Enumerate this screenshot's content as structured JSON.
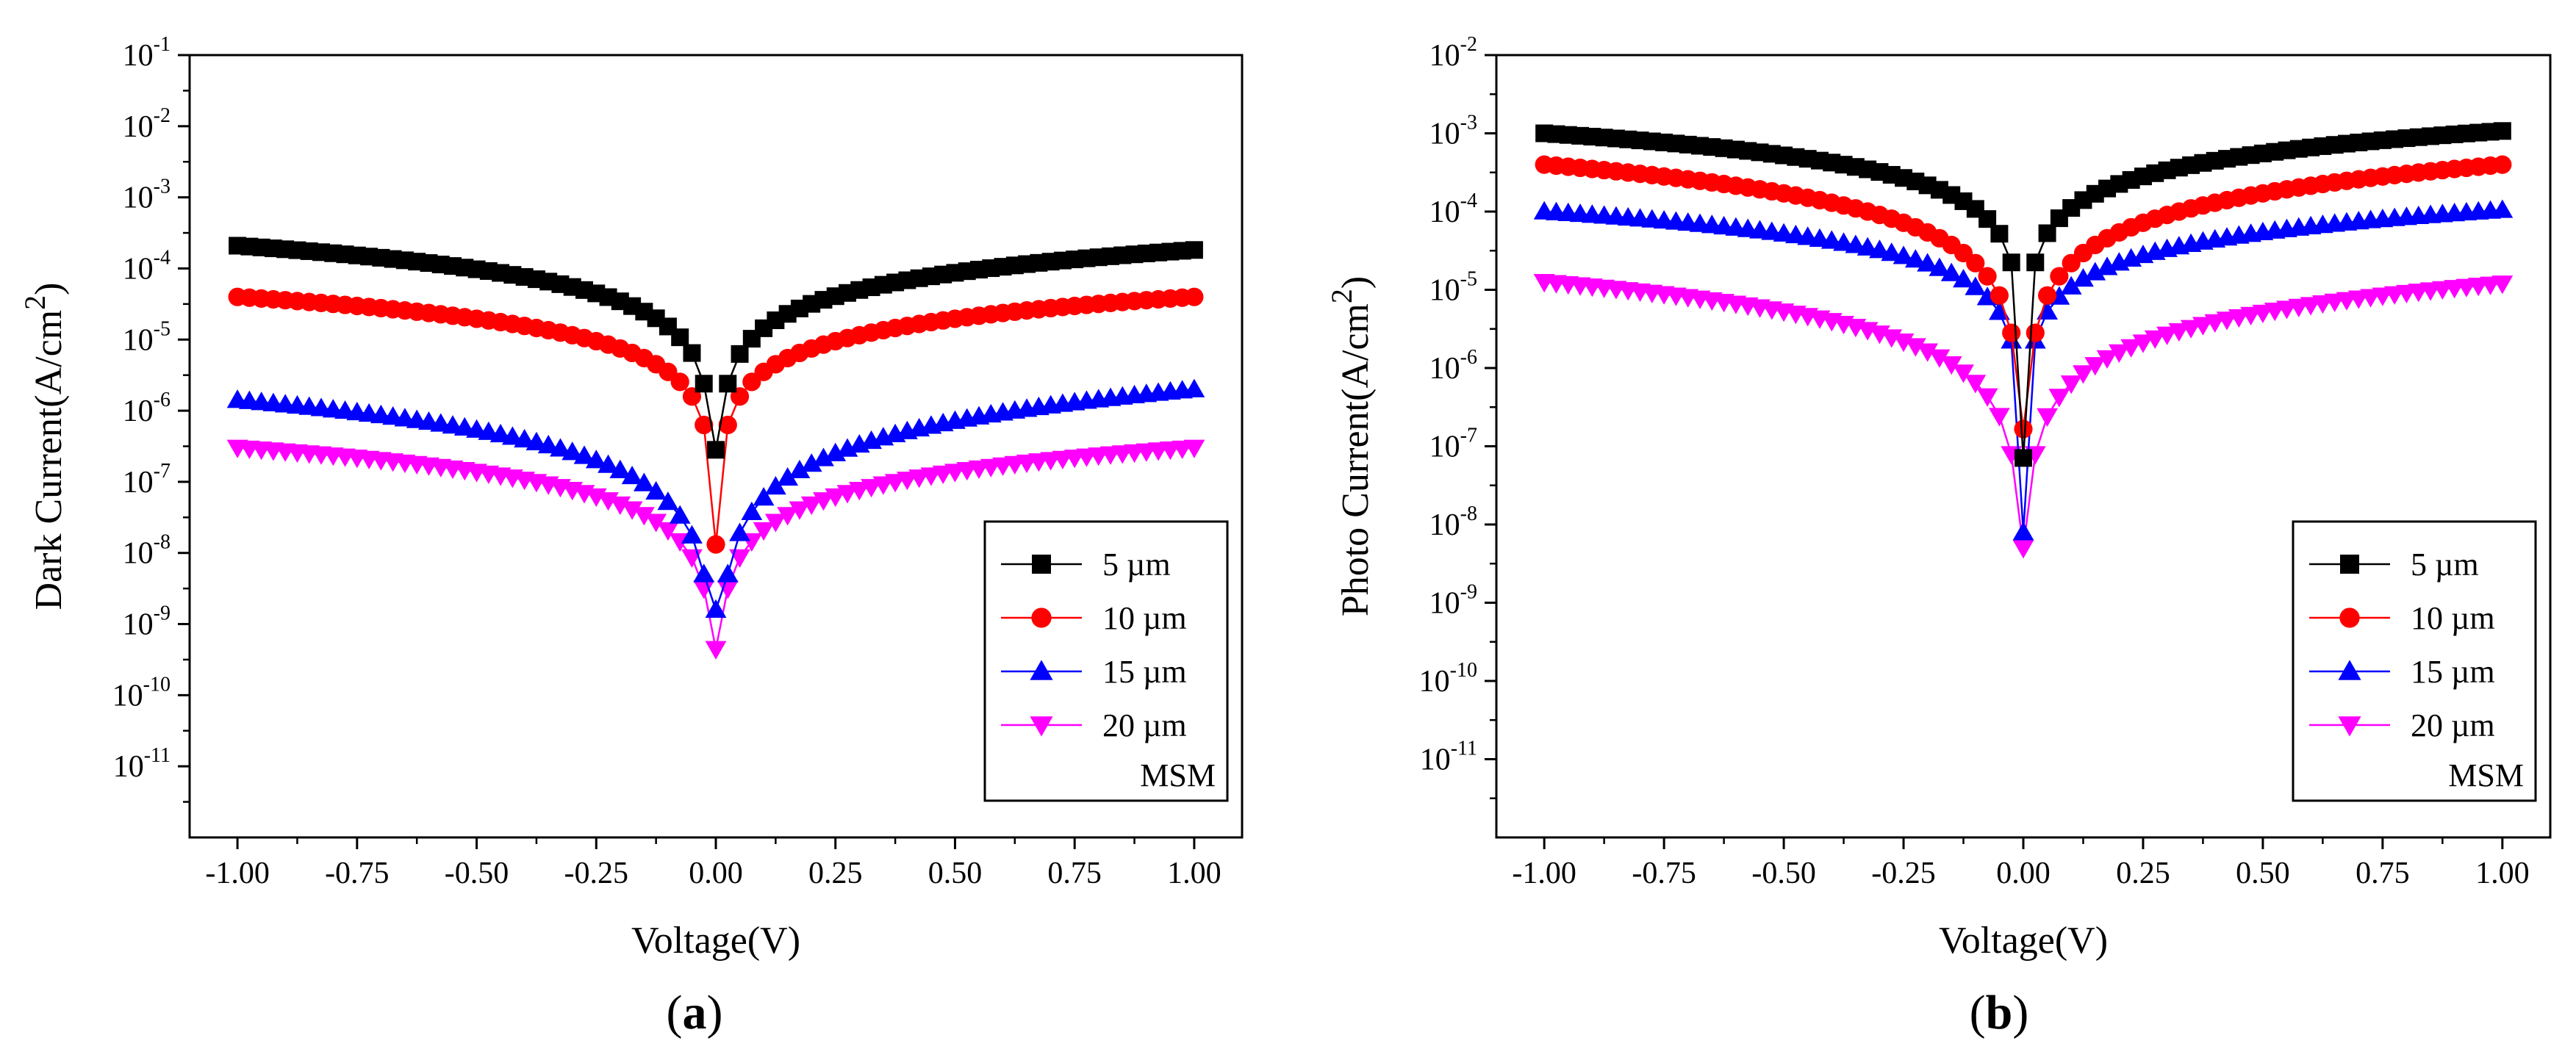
{
  "chart_data": [
    {
      "type": "scatter",
      "panel": "a",
      "caption": "a",
      "xlabel": "Voltage(V)",
      "ylabel_main": "Dark Current(A/cm",
      "ylabel_sup": "2",
      "ylabel_close": ")",
      "yscale": "log",
      "xlim": [
        -1.1,
        1.1
      ],
      "ylim_exp": [
        -12,
        -1
      ],
      "x_ticks": [
        -1.0,
        -0.75,
        -0.5,
        -0.25,
        0.0,
        0.25,
        0.5,
        0.75,
        1.0
      ],
      "x_tick_labels": [
        "-1.00",
        "-0.75",
        "-0.50",
        "-0.25",
        "0.00",
        "0.25",
        "0.50",
        "0.75",
        "1.00"
      ],
      "y_tick_exps": [
        -11,
        -10,
        -9,
        -8,
        -7,
        -6,
        -5,
        -4,
        -3,
        -2,
        -1
      ],
      "y_tick_exp_labels": [
        "-11",
        "-10",
        "-9",
        "-8",
        "-7",
        "-6",
        "-5",
        "-4",
        "-3",
        "-2",
        "-1"
      ],
      "y_tick_base": "10",
      "legend_note": "MSM",
      "legend_position": "bottom-right",
      "series": [
        {
          "name": "5 µm",
          "marker": "square",
          "color": "#000000",
          "neg_end": -3.68,
          "pos_end": -3.74,
          "center": -6.55,
          "first": -5.62
        },
        {
          "name": "10 µm",
          "marker": "circle",
          "color": "#ff0000",
          "neg_end": -4.4,
          "pos_end": -4.4,
          "center": -7.88,
          "first": -6.2
        },
        {
          "name": "15 µm",
          "marker": "triangle-up",
          "color": "#0000ff",
          "neg_end": -5.85,
          "pos_end": -5.7,
          "center": -8.8,
          "first": -8.3
        },
        {
          "name": "20 µm",
          "marker": "triangle-down",
          "color": "#ff00ff",
          "neg_end": -6.52,
          "pos_end": -6.52,
          "center": -9.35,
          "first": -8.5
        }
      ]
    },
    {
      "type": "scatter",
      "panel": "b",
      "caption": "b",
      "xlabel": "Voltage(V)",
      "ylabel_main": "Photo Current(A/cm",
      "ylabel_sup": "2",
      "ylabel_close": ")",
      "yscale": "log",
      "xlim": [
        -1.1,
        1.1
      ],
      "ylim_exp": [
        -12,
        -2
      ],
      "x_ticks": [
        -1.0,
        -0.75,
        -0.5,
        -0.25,
        0.0,
        0.25,
        0.5,
        0.75,
        1.0
      ],
      "x_tick_labels": [
        "-1.00",
        "-0.75",
        "-0.50",
        "-0.25",
        "0.00",
        "0.25",
        "0.50",
        "0.75",
        "1.00"
      ],
      "y_tick_exps": [
        -11,
        -10,
        -9,
        -8,
        -7,
        -6,
        -5,
        -4,
        -3,
        -2
      ],
      "y_tick_exp_labels": [
        "-11",
        "-10",
        "-9",
        "-8",
        "-7",
        "-6",
        "-5",
        "-4",
        "-3",
        "-2"
      ],
      "y_tick_base": "10",
      "legend_note": "MSM",
      "legend_position": "bottom-right",
      "series": [
        {
          "name": "5 µm",
          "marker": "square",
          "color": "#000000",
          "neg_end": -3.0,
          "pos_end": -2.97,
          "center": -7.15,
          "first": -4.65
        },
        {
          "name": "10 µm",
          "marker": "circle",
          "color": "#ff0000",
          "neg_end": -3.4,
          "pos_end": -3.4,
          "center": -6.78,
          "first": -5.55
        },
        {
          "name": "15 µm",
          "marker": "triangle-up",
          "color": "#0000ff",
          "neg_end": -4.0,
          "pos_end": -3.98,
          "center": -8.1,
          "first": -5.65
        },
        {
          "name": "20 µm",
          "marker": "triangle-down",
          "color": "#ff00ff",
          "neg_end": -4.9,
          "pos_end": -4.92,
          "center": -8.3,
          "first": -7.1
        }
      ]
    }
  ]
}
